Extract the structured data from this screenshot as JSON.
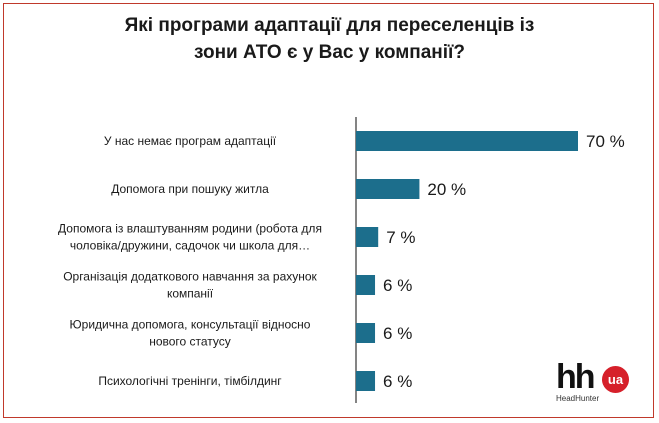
{
  "title_lines": [
    "Які програми адаптації для переселенців із",
    "зони АТО є у Вас у компанії?"
  ],
  "colors": {
    "bar": "#1c6e8c",
    "axis": "#333333",
    "frame": "#c0392b",
    "logo_red": "#d6202a"
  },
  "logo": {
    "mark": "hh",
    "badge": "ua",
    "sub": "HeadHunter"
  },
  "chart_data": {
    "type": "bar",
    "orientation": "horizontal",
    "title": "Які програми адаптації для переселенців із зони АТО є у Вас у компанії?",
    "xlim": [
      0,
      70
    ],
    "categories": [
      [
        "У нас немає програм адаптації"
      ],
      [
        "Допомога при пошуку житла"
      ],
      [
        "Допомога із влаштуванням родини (робота для",
        "чоловіка/дружини, садочок чи школа для…"
      ],
      [
        "Організація додаткового навчання за рахунок",
        "компанії"
      ],
      [
        "Юридична допомога, консультації відносно",
        "нового статусу"
      ],
      [
        "Психологічні тренінги, тімбілдинг"
      ]
    ],
    "values": [
      70,
      20,
      7,
      6,
      6,
      6
    ],
    "value_labels": [
      "70 %",
      "20 %",
      "7 %",
      "6 %",
      "6 %",
      "6 %"
    ],
    "grid": false
  }
}
